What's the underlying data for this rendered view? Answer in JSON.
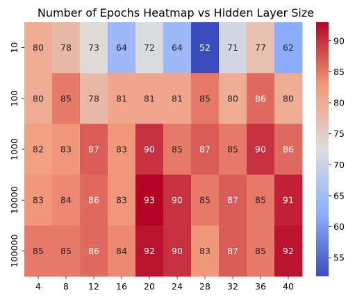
{
  "chart_data": {
    "type": "heatmap",
    "title": "Number of Epochs Heatmap vs Hidden Layer Size",
    "xlabel": "",
    "ylabel": "",
    "x_categories": [
      "4",
      "8",
      "12",
      "16",
      "20",
      "24",
      "28",
      "32",
      "36",
      "40"
    ],
    "y_categories": [
      "10",
      "100",
      "1000",
      "10000",
      "100000"
    ],
    "values": [
      [
        80,
        78,
        73,
        64,
        72,
        64,
        52,
        71,
        77,
        62
      ],
      [
        80,
        85,
        78,
        81,
        81,
        81,
        85,
        80,
        86,
        80
      ],
      [
        82,
        83,
        87,
        83,
        90,
        85,
        87,
        85,
        90,
        86
      ],
      [
        83,
        84,
        86,
        83,
        93,
        90,
        85,
        87,
        85,
        91
      ],
      [
        85,
        85,
        86,
        84,
        92,
        90,
        83,
        87,
        85,
        92
      ]
    ],
    "annotations": true,
    "colormap": "coolwarm",
    "vmin": 52,
    "vmax": 93,
    "colorbar_ticks": [
      55,
      60,
      65,
      70,
      75,
      80,
      85,
      90
    ],
    "grid": false,
    "legend": "colorbar-right"
  }
}
